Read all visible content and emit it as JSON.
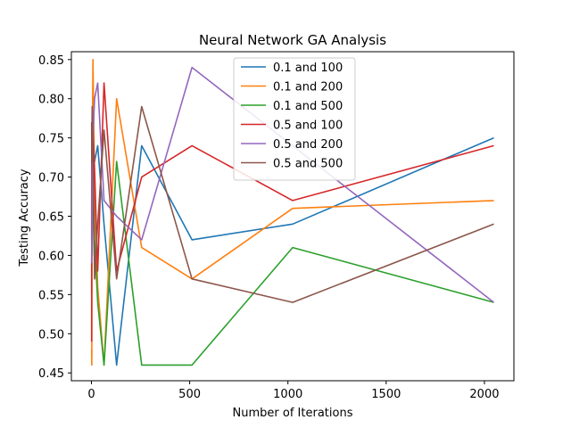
{
  "chart_data": {
    "type": "line",
    "title": "Neural Network GA Analysis",
    "xlabel": "Number of Iterations",
    "ylabel": "Testing Accuracy",
    "xlim": [
      -102,
      2150
    ],
    "ylim": [
      0.44,
      0.86
    ],
    "xticks": [
      0,
      500,
      1000,
      1500,
      2000
    ],
    "yticks": [
      0.45,
      0.5,
      0.55,
      0.6,
      0.65,
      0.7,
      0.75,
      0.8,
      0.85
    ],
    "ytick_labels": [
      "0.45",
      "0.50",
      "0.55",
      "0.60",
      "0.65",
      "0.70",
      "0.75",
      "0.80",
      "0.85"
    ],
    "grid": false,
    "legend_position": "upper center",
    "x": [
      1,
      2,
      4,
      8,
      16,
      32,
      64,
      128,
      256,
      512,
      1024,
      2048
    ],
    "series": [
      {
        "name": "0.1 and 100",
        "color": "#1f77b4",
        "values": [
          0.62,
          0.74,
          0.6,
          0.71,
          0.72,
          0.74,
          0.64,
          0.46,
          0.74,
          0.62,
          0.64,
          0.75
        ]
      },
      {
        "name": "0.1 and 200",
        "color": "#ff7f0e",
        "values": [
          0.48,
          0.46,
          0.72,
          0.85,
          0.68,
          0.56,
          0.46,
          0.8,
          0.61,
          0.57,
          0.66,
          0.67
        ]
      },
      {
        "name": "0.1 and 500",
        "color": "#2ca02c",
        "values": [
          0.55,
          0.7,
          0.78,
          0.7,
          0.62,
          0.54,
          0.46,
          0.72,
          0.46,
          0.46,
          0.61,
          0.54
        ]
      },
      {
        "name": "0.5 and 100",
        "color": "#d62728",
        "values": [
          0.49,
          0.72,
          0.77,
          0.76,
          0.71,
          0.58,
          0.82,
          0.58,
          0.7,
          0.74,
          0.67,
          0.74
        ]
      },
      {
        "name": "0.5 and 200",
        "color": "#9467bd",
        "values": [
          0.59,
          0.62,
          0.71,
          0.75,
          0.8,
          0.82,
          0.67,
          0.65,
          0.62,
          0.84,
          null,
          0.54
        ]
      },
      {
        "name": "0.5 and 500",
        "color": "#8c564b",
        "values": [
          0.77,
          0.72,
          0.79,
          0.73,
          0.57,
          0.64,
          0.76,
          0.57,
          0.79,
          0.57,
          0.54,
          0.64
        ]
      }
    ]
  }
}
